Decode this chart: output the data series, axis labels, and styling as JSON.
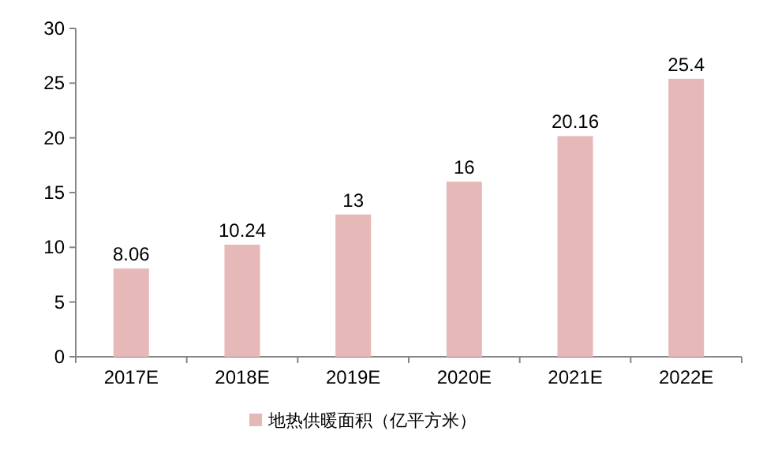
{
  "chart_data": {
    "type": "bar",
    "categories": [
      "2017E",
      "2018E",
      "2019E",
      "2020E",
      "2021E",
      "2022E"
    ],
    "series": [
      {
        "name": "地热供暖面积（亿平方米）",
        "color": "#e6b9b8",
        "values": [
          8.06,
          10.24,
          13,
          16,
          20.16,
          25.4
        ]
      }
    ],
    "ylim": [
      0,
      30
    ],
    "yticks": [
      0,
      5,
      10,
      15,
      20,
      25,
      30
    ],
    "data_labels": true,
    "legend": "bottom"
  }
}
